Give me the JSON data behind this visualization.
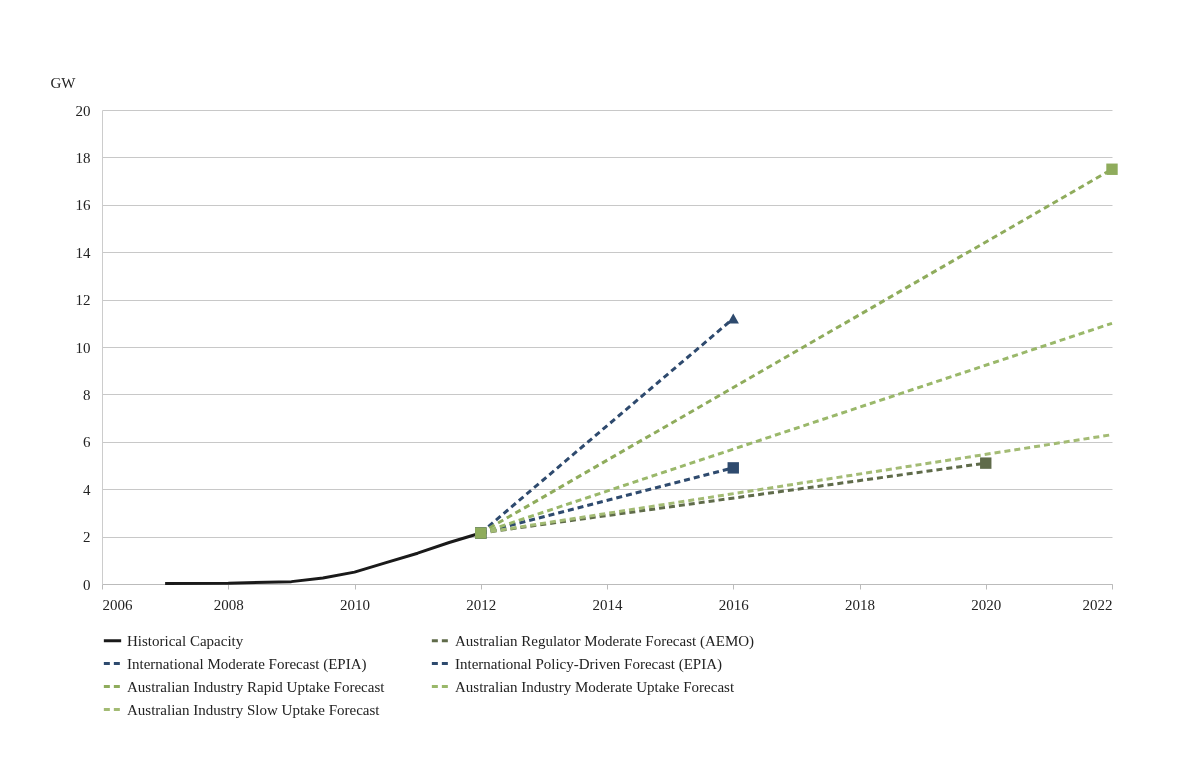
{
  "chart_data": {
    "type": "line",
    "ylabel": "GW",
    "xlim": [
      2006,
      2022
    ],
    "xticks": [
      2006,
      2008,
      2010,
      2012,
      2014,
      2016,
      2018,
      2020,
      2022
    ],
    "ylim": [
      0,
      20
    ],
    "yticks": [
      0,
      2,
      4,
      6,
      8,
      10,
      12,
      14,
      16,
      18,
      20
    ],
    "grid": "y",
    "legend": "bottom",
    "series": [
      {
        "name": "Historical Capacity",
        "color": "#1a1a1a",
        "line_style": "solid",
        "marker": "none",
        "x": [
          2007,
          2008,
          2009,
          2009.5,
          2010,
          2010.5,
          2011,
          2011.5,
          2012
        ],
        "values": [
          0.02,
          0.03,
          0.1,
          0.25,
          0.5,
          0.9,
          1.3,
          1.75,
          2.15
        ]
      },
      {
        "name": "Australian Regulator Moderate Forecast (AEMO)",
        "color": "#5f6b4a",
        "line_style": "dashed",
        "marker": "square",
        "x": [
          2012,
          2020
        ],
        "values": [
          2.15,
          5.1
        ]
      },
      {
        "name": "International Moderate Forecast (EPIA)",
        "color": "#2e4a6e",
        "line_style": "dashed",
        "marker": "square",
        "x": [
          2012,
          2016
        ],
        "values": [
          2.15,
          4.9
        ]
      },
      {
        "name": "International Policy-Driven Forecast (EPIA)",
        "color": "#2e4a6e",
        "line_style": "dashed",
        "marker": "triangle",
        "x": [
          2012,
          2016
        ],
        "values": [
          2.15,
          11.2
        ]
      },
      {
        "name": "Australian Industry Rapid Uptake Forecast",
        "color": "#8fac5c",
        "line_style": "dashed",
        "marker": "square",
        "x": [
          2012,
          2022
        ],
        "values": [
          2.15,
          17.5
        ]
      },
      {
        "name": "Australian Industry Moderate Uptake Forecast",
        "color": "#9ab86a",
        "line_style": "dashed",
        "marker": "none",
        "x": [
          2012,
          2022
        ],
        "values": [
          2.15,
          11.0
        ]
      },
      {
        "name": "Australian Industry Slow Uptake Forecast",
        "color": "#a3bb74",
        "line_style": "dashed",
        "marker": "none",
        "x": [
          2012,
          2022
        ],
        "values": [
          2.15,
          6.3
        ]
      }
    ]
  }
}
